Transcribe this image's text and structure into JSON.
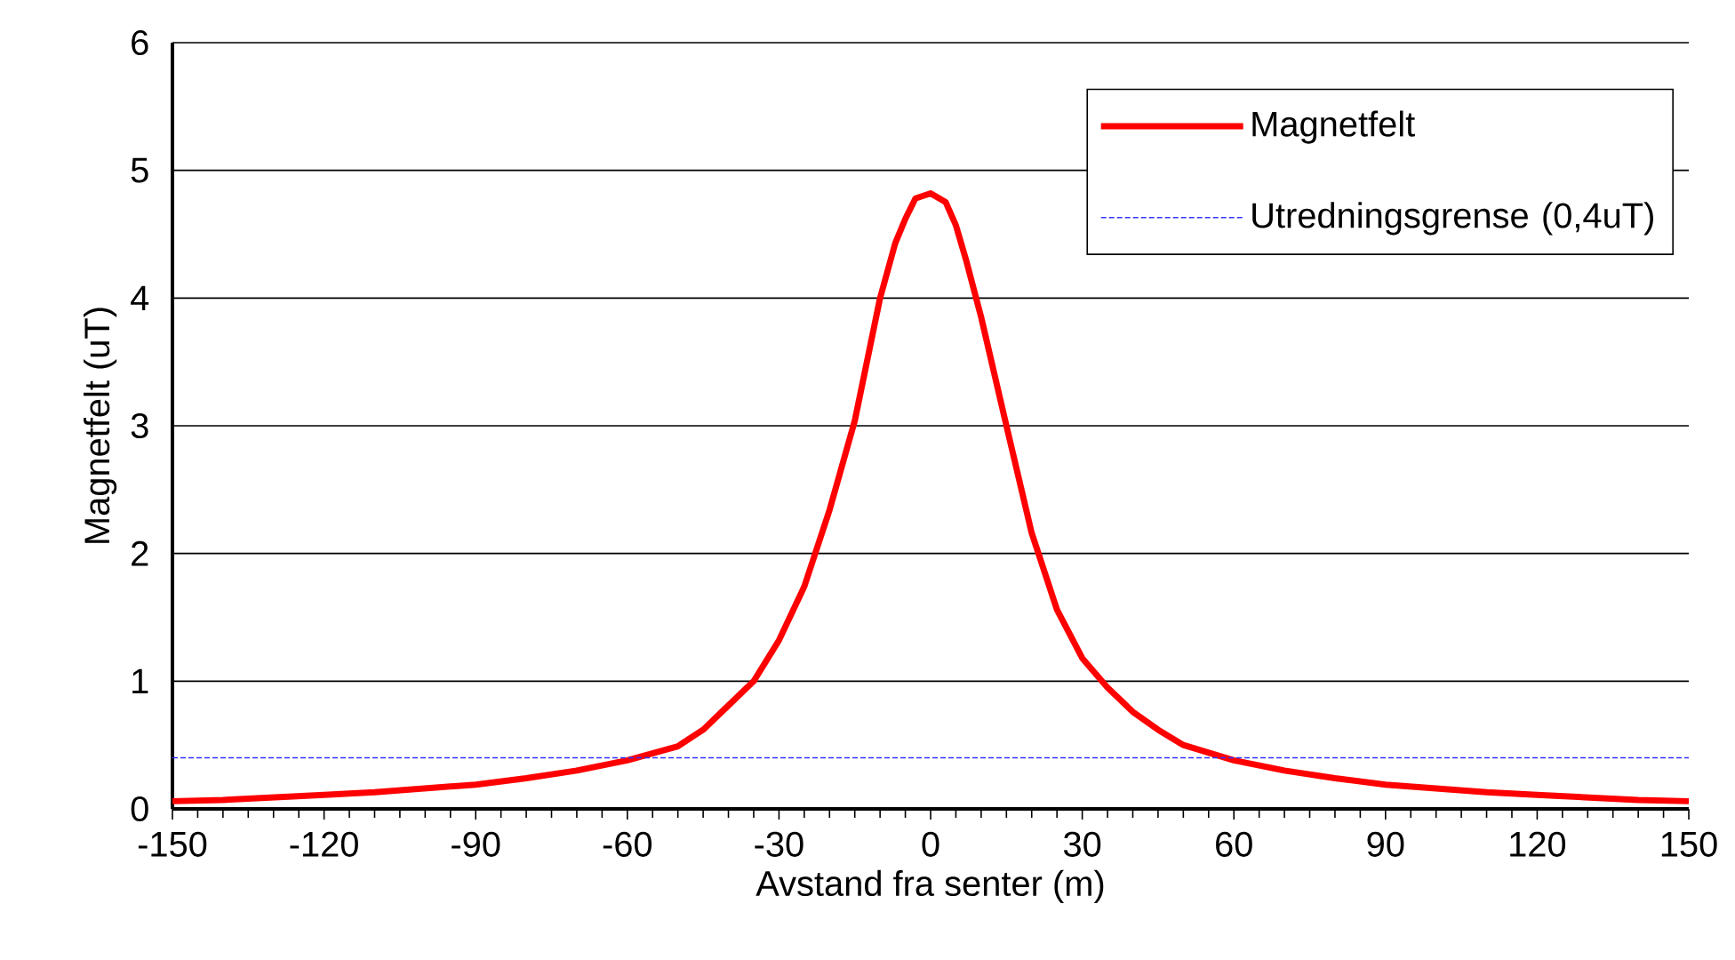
{
  "chart_data": {
    "type": "line",
    "xlabel": "Avstand fra senter (m)",
    "ylabel": "Magnetfelt (uT)",
    "xlim": [
      -150,
      150
    ],
    "xticks": [
      -150,
      -120,
      -90,
      -60,
      -30,
      0,
      30,
      60,
      90,
      120,
      150
    ],
    "ylim": [
      0,
      6
    ],
    "yticks": [
      0,
      1,
      2,
      3,
      4,
      5,
      6
    ],
    "grid": "y",
    "legend": "top right",
    "marker": "none",
    "line_style": "solid",
    "series": [
      {
        "name": "Magnetfelt",
        "color": "#ff0000",
        "x": [
          -150,
          -140,
          -130,
          -120,
          -110,
          -100,
          -90,
          -80,
          -70,
          -60,
          -50,
          -45,
          -40,
          -35,
          -30,
          -25,
          -20,
          -15,
          -10,
          -7,
          -5,
          -3,
          0,
          3,
          5,
          7,
          10,
          15,
          20,
          25,
          30,
          35,
          40,
          45,
          50,
          60,
          70,
          80,
          90,
          100,
          110,
          120,
          130,
          140,
          150
        ],
        "values": [
          0.06,
          0.07,
          0.09,
          0.11,
          0.13,
          0.16,
          0.19,
          0.24,
          0.3,
          0.38,
          0.49,
          0.62,
          0.81,
          1.0,
          1.32,
          1.74,
          2.34,
          3.04,
          4.0,
          4.43,
          4.62,
          4.78,
          4.82,
          4.75,
          4.57,
          4.3,
          3.85,
          3.0,
          2.16,
          1.56,
          1.18,
          0.95,
          0.76,
          0.62,
          0.5,
          0.38,
          0.3,
          0.24,
          0.19,
          0.16,
          0.13,
          0.11,
          0.09,
          0.07,
          0.06
        ]
      }
    ],
    "ref_lines": [
      {
        "axis": "y",
        "value": 0.4,
        "label": "Utredningsgrense (0,4uT)",
        "color": "#3333ff",
        "line_style": "dashed"
      }
    ]
  }
}
